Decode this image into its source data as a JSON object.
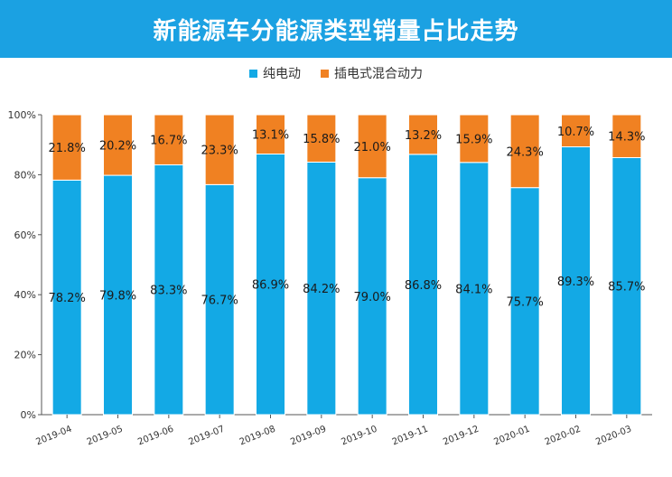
{
  "header": {
    "title": "新能源车分能源类型销量占比走势"
  },
  "colors": {
    "title_bg": "#1ba1e2",
    "series_bev": "#13a9e5",
    "series_phev": "#f08122"
  },
  "chart_data": {
    "type": "bar",
    "stacked": true,
    "title": "新能源车分能源类型销量占比走势",
    "categories": [
      "2019-04",
      "2019-05",
      "2019-06",
      "2019-07",
      "2019-08",
      "2019-09",
      "2019-10",
      "2019-11",
      "2019-12",
      "2020-01",
      "2020-02",
      "2020-03"
    ],
    "series": [
      {
        "name": "纯电动",
        "color": "#13a9e5",
        "values": [
          78.2,
          79.8,
          83.3,
          76.7,
          86.9,
          84.2,
          79.0,
          86.8,
          84.1,
          75.7,
          89.3,
          85.7
        ],
        "labels": [
          "78.2%",
          "79.8%",
          "83.3%",
          "76.7%",
          "86.9%",
          "84.2%",
          "79.0%",
          "86.8%",
          "84.1%",
          "75.7%",
          "89.3%",
          "85.7%"
        ]
      },
      {
        "name": "插电式混合动力",
        "color": "#f08122",
        "values": [
          21.8,
          20.2,
          16.7,
          23.3,
          13.1,
          15.8,
          21.0,
          13.2,
          15.9,
          24.3,
          10.7,
          14.3
        ],
        "labels": [
          "21.8%",
          "20.2%",
          "16.7%",
          "23.3%",
          "13.1%",
          "15.8%",
          "21.0%",
          "13.2%",
          "15.9%",
          "24.3%",
          "10.7%",
          "14.3%"
        ]
      }
    ],
    "ylim": [
      0,
      100
    ],
    "yticks": [
      "0%",
      "20%",
      "40%",
      "60%",
      "80%",
      "100%"
    ],
    "xlabel": "",
    "ylabel": "",
    "legend_position": "top-center",
    "grid": false
  }
}
